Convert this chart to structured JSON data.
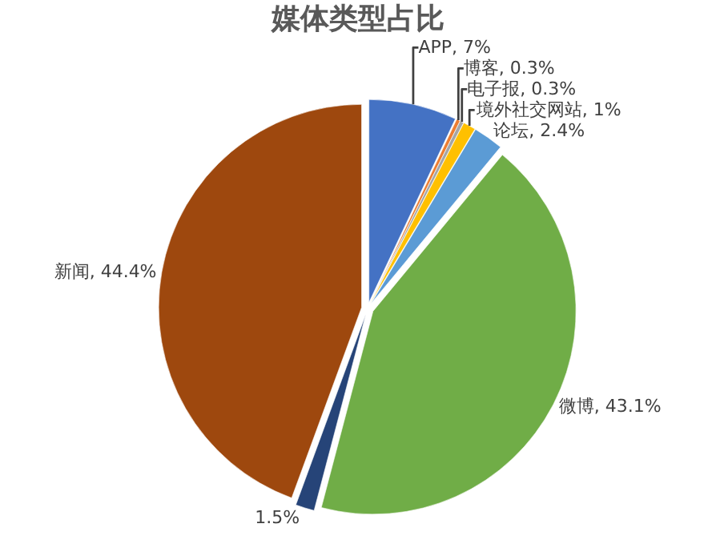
{
  "chart_data": {
    "type": "pie",
    "title": "媒体类型占比",
    "categories": [
      "APP",
      "博客",
      "电子报",
      "境外社交网站",
      "论坛",
      "微博",
      null,
      "新闻"
    ],
    "values": [
      7,
      0.3,
      0.3,
      1,
      2.4,
      43.1,
      1.5,
      44.4
    ],
    "value_labels": [
      "7%",
      "0.3%",
      "0.3%",
      "1%",
      "2.4%",
      "43.1%",
      "1.5%",
      "44.4%"
    ],
    "colors": [
      "#4472c4",
      "#ed7d31",
      "#a5a5a5",
      "#ffc000",
      "#5b9bd5",
      "#70ad47",
      "#264478",
      "#9e480e"
    ],
    "legend": false
  }
}
